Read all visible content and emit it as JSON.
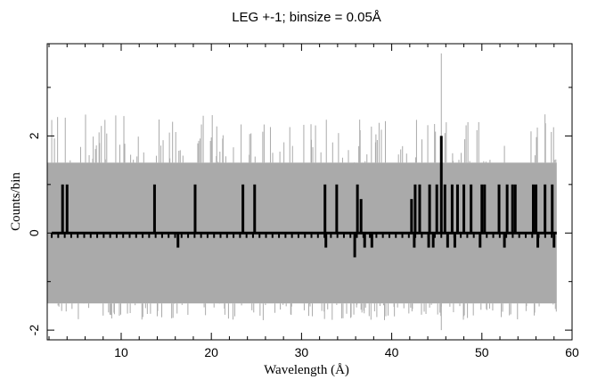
{
  "chart_data": {
    "type": "line",
    "title": "LEG +-1; binsize = 0.05Å",
    "xlabel": "Wavelength (Å)",
    "ylabel": "Counts/bin",
    "xlim": [
      1.8,
      60
    ],
    "ylim": [
      -2.2,
      3.9
    ],
    "x_ticks": [
      10,
      20,
      30,
      40,
      50,
      60
    ],
    "y_ticks": [
      -2,
      0,
      2
    ],
    "grid": false,
    "colors": {
      "error_band": "#aaaaaa",
      "data": "#000000",
      "axes": "#000000"
    },
    "series": [
      {
        "values_abbrev": "bins with nonzero counts (x in Å, y in counts/bin)",
        "points": [
          [
            3.5,
            1
          ],
          [
            4.0,
            1
          ],
          [
            13.7,
            1
          ],
          [
            18.2,
            1
          ],
          [
            23.5,
            1
          ],
          [
            24.8,
            1
          ],
          [
            32.6,
            1
          ],
          [
            33.9,
            1
          ],
          [
            36.2,
            1
          ],
          [
            36.6,
            0.7
          ],
          [
            42.2,
            0.7
          ],
          [
            42.6,
            1
          ],
          [
            43.1,
            1
          ],
          [
            44.2,
            1
          ],
          [
            45.0,
            1
          ],
          [
            45.5,
            2
          ],
          [
            45.9,
            1
          ],
          [
            46.7,
            1
          ],
          [
            47.3,
            1
          ],
          [
            48.0,
            1
          ],
          [
            48.8,
            1
          ],
          [
            50.0,
            1
          ],
          [
            50.3,
            1
          ],
          [
            51.9,
            1
          ],
          [
            52.8,
            1
          ],
          [
            53.4,
            1
          ],
          [
            53.7,
            1
          ],
          [
            55.7,
            1
          ],
          [
            56.0,
            1
          ],
          [
            57.0,
            1
          ],
          [
            57.8,
            1
          ],
          [
            16.3,
            -0.3
          ],
          [
            32.7,
            -0.3
          ],
          [
            35.9,
            -0.5
          ],
          [
            37.0,
            -0.3
          ],
          [
            37.8,
            -0.3
          ],
          [
            42.5,
            -0.3
          ],
          [
            44.1,
            -0.3
          ],
          [
            44.6,
            -0.3
          ],
          [
            46.2,
            -0.3
          ],
          [
            47.0,
            -0.3
          ],
          [
            49.8,
            -0.3
          ],
          [
            52.5,
            -0.3
          ],
          [
            56.2,
            -0.3
          ],
          [
            58.0,
            -0.3
          ]
        ]
      }
    ],
    "error_band": {
      "upper": 1.45,
      "lower": -1.45,
      "spike_max": 3.7,
      "spike_min": -2.0
    }
  }
}
